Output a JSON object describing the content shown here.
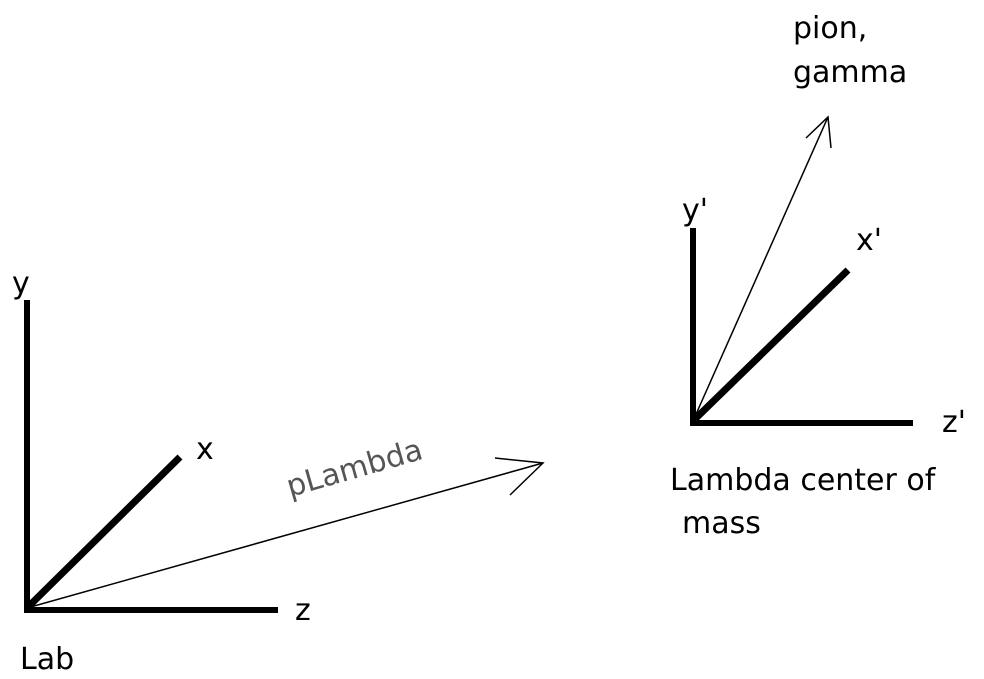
{
  "lab": {
    "axes": {
      "y": "y",
      "x": "x",
      "z": "z"
    },
    "label": "Lab",
    "vector": "pLambda"
  },
  "cm": {
    "axes": {
      "y": "y'",
      "x": "x'",
      "z": "z'"
    },
    "label_line1": "Lambda center of",
    "label_line2": "mass",
    "vector_line1": "pion,",
    "vector_line2": "gamma"
  }
}
